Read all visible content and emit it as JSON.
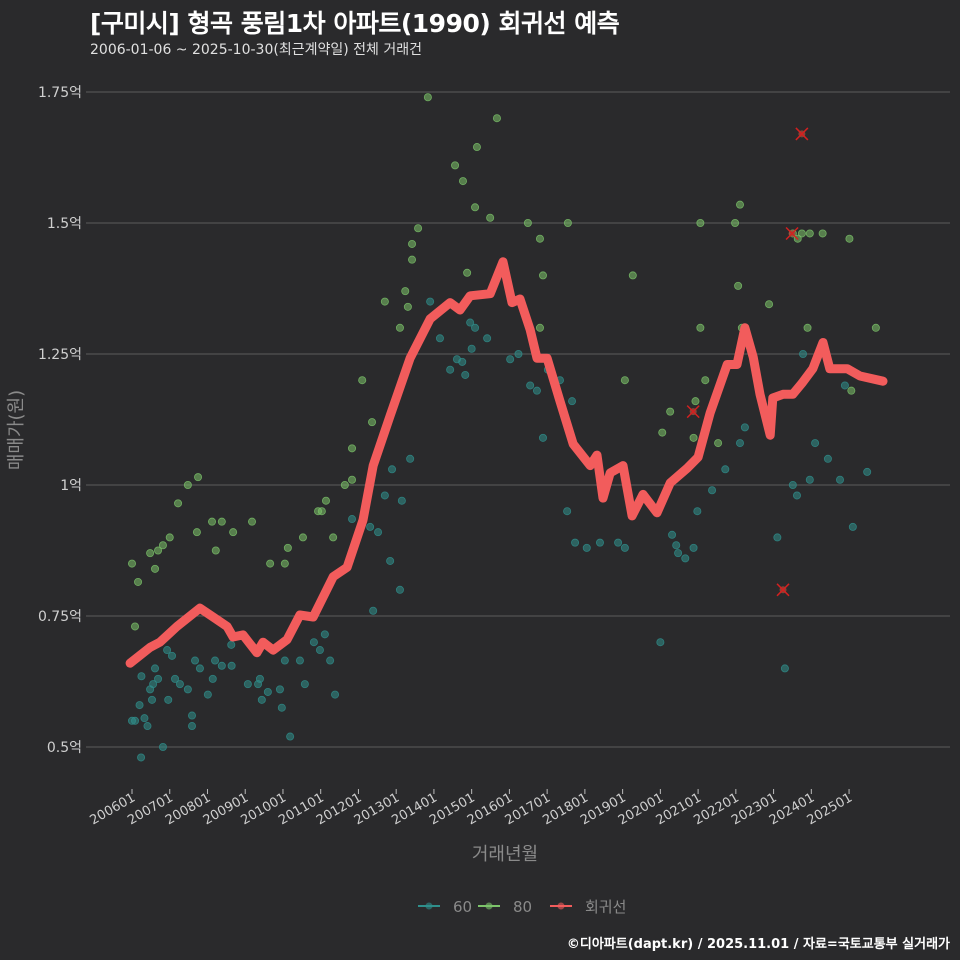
{
  "header": {
    "title": "[구미시] 형곡 풍림1차 아파트(1990) 회귀선 예측",
    "subtitle": "2006-01-06 ~ 2025-10-30(최근계약일) 전체 거래건"
  },
  "footer": "©디아파트(dapt.kr) / 2025.11.01 / 자료=국토교통부 실거래가",
  "colors": {
    "background": "#2a2a2c",
    "grid": "#5c5c5c",
    "series60": "#2f8f8c",
    "series80": "#7cc36a",
    "regression": "#f25c5c",
    "outlier": "#d42020"
  },
  "chart_data": {
    "type": "scatter",
    "title": "[구미시] 형곡 풍림1차 아파트(1990) 회귀선 예측",
    "xlabel": "거래년월",
    "ylabel": "매매가(원)",
    "xlim": [
      2005.5,
      2026.3
    ],
    "ylim": [
      0.43,
      1.8
    ],
    "yticks": [
      {
        "value": 0.5,
        "label": "0.5억"
      },
      {
        "value": 0.75,
        "label": "0.75억"
      },
      {
        "value": 1.0,
        "label": "1억"
      },
      {
        "value": 1.25,
        "label": "1.25억"
      },
      {
        "value": 1.5,
        "label": "1.5억"
      },
      {
        "value": 1.75,
        "label": "1.75억"
      }
    ],
    "xticks": [
      {
        "value": 2006,
        "label": "200601"
      },
      {
        "value": 2007,
        "label": "200701"
      },
      {
        "value": 2008,
        "label": "200801"
      },
      {
        "value": 2009,
        "label": "200901"
      },
      {
        "value": 2010,
        "label": "201001"
      },
      {
        "value": 2011,
        "label": "201101"
      },
      {
        "value": 2012,
        "label": "201201"
      },
      {
        "value": 2013,
        "label": "201301"
      },
      {
        "value": 2014,
        "label": "201401"
      },
      {
        "value": 2015,
        "label": "201501"
      },
      {
        "value": 2016,
        "label": "201601"
      },
      {
        "value": 2017,
        "label": "201701"
      },
      {
        "value": 2018,
        "label": "201801"
      },
      {
        "value": 2019,
        "label": "201901"
      },
      {
        "value": 2020,
        "label": "202001"
      },
      {
        "value": 2021,
        "label": "202101"
      },
      {
        "value": 2022,
        "label": "202201"
      },
      {
        "value": 2023,
        "label": "202301"
      },
      {
        "value": 2024,
        "label": "202401"
      },
      {
        "value": 2025,
        "label": "202501"
      }
    ],
    "legend": {
      "position": "bottom",
      "items": [
        {
          "name": "60",
          "key": "series60"
        },
        {
          "name": "80",
          "key": "series80"
        },
        {
          "name": "회귀선",
          "key": "regression"
        }
      ]
    },
    "series": [
      {
        "name": "60",
        "points": [
          [
            2006.0,
            0.55
          ],
          [
            2006.08,
            0.55
          ],
          [
            2006.2,
            0.58
          ],
          [
            2006.25,
            0.635
          ],
          [
            2006.33,
            0.555
          ],
          [
            2006.41,
            0.54
          ],
          [
            2006.48,
            0.61
          ],
          [
            2006.53,
            0.59
          ],
          [
            2006.56,
            0.62
          ],
          [
            2006.61,
            0.65
          ],
          [
            2006.69,
            0.63
          ],
          [
            2006.82,
            0.5
          ],
          [
            2006.93,
            0.685
          ],
          [
            2006.96,
            0.59
          ],
          [
            2006.24,
            0.48
          ],
          [
            2007.06,
            0.674
          ],
          [
            2007.14,
            0.63
          ],
          [
            2007.27,
            0.62
          ],
          [
            2007.48,
            0.61
          ],
          [
            2007.59,
            0.54
          ],
          [
            2007.59,
            0.56
          ],
          [
            2007.67,
            0.665
          ],
          [
            2007.8,
            0.65
          ],
          [
            2008.01,
            0.6
          ],
          [
            2008.14,
            0.63
          ],
          [
            2008.2,
            0.665
          ],
          [
            2008.38,
            0.655
          ],
          [
            2008.63,
            0.695
          ],
          [
            2008.64,
            0.655
          ],
          [
            2009.07,
            0.62
          ],
          [
            2009.34,
            0.62
          ],
          [
            2009.44,
            0.59
          ],
          [
            2009.39,
            0.63
          ],
          [
            2009.6,
            0.605
          ],
          [
            2009.92,
            0.61
          ],
          [
            2009.97,
            0.575
          ],
          [
            2010.05,
            0.665
          ],
          [
            2010.19,
            0.52
          ],
          [
            2010.45,
            0.665
          ],
          [
            2010.58,
            0.62
          ],
          [
            2010.82,
            0.7
          ],
          [
            2010.98,
            0.685
          ],
          [
            2011.11,
            0.715
          ],
          [
            2011.25,
            0.665
          ],
          [
            2011.38,
            0.6
          ],
          [
            2011.77,
            0.855
          ],
          [
            2011.83,
            0.935
          ],
          [
            2012.31,
            0.92
          ],
          [
            2012.39,
            0.76
          ],
          [
            2012.52,
            0.91
          ],
          [
            2012.7,
            0.98
          ],
          [
            2012.84,
            0.855
          ],
          [
            2012.89,
            1.03
          ],
          [
            2013.1,
            0.8
          ],
          [
            2013.15,
            0.97
          ],
          [
            2013.37,
            1.05
          ],
          [
            2013.63,
            1.28
          ],
          [
            2013.9,
            1.35
          ],
          [
            2014.16,
            1.28
          ],
          [
            2014.43,
            1.22
          ],
          [
            2014.61,
            1.24
          ],
          [
            2014.75,
            1.235
          ],
          [
            2014.83,
            1.21
          ],
          [
            2014.96,
            1.31
          ],
          [
            2015.0,
            1.26
          ],
          [
            2015.09,
            1.3
          ],
          [
            2015.41,
            1.28
          ],
          [
            2016.02,
            1.24
          ],
          [
            2016.24,
            1.25
          ],
          [
            2016.55,
            1.19
          ],
          [
            2016.73,
            1.18
          ],
          [
            2016.89,
            1.09
          ],
          [
            2017.02,
            1.22
          ],
          [
            2017.34,
            1.2
          ],
          [
            2017.66,
            1.16
          ],
          [
            2017.53,
            0.95
          ],
          [
            2017.74,
            0.89
          ],
          [
            2018.05,
            0.88
          ],
          [
            2018.4,
            0.89
          ],
          [
            2018.88,
            0.89
          ],
          [
            2019.06,
            0.88
          ],
          [
            2020.0,
            0.7
          ],
          [
            2020.31,
            0.905
          ],
          [
            2020.42,
            0.885
          ],
          [
            2020.47,
            0.87
          ],
          [
            2020.66,
            0.86
          ],
          [
            2020.88,
            0.88
          ],
          [
            2020.98,
            0.95
          ],
          [
            2021.37,
            0.99
          ],
          [
            2021.72,
            1.03
          ],
          [
            2022.11,
            1.08
          ],
          [
            2022.24,
            1.11
          ],
          [
            2023.1,
            0.9
          ],
          [
            2023.3,
            0.65
          ],
          [
            2023.51,
            1.0
          ],
          [
            2023.62,
            0.98
          ],
          [
            2023.96,
            1.01
          ],
          [
            2024.1,
            1.08
          ],
          [
            2024.44,
            1.05
          ],
          [
            2024.76,
            1.01
          ],
          [
            2025.1,
            0.92
          ],
          [
            2025.48,
            1.025
          ],
          [
            2023.78,
            1.25
          ],
          [
            2024.89,
            1.19
          ]
        ]
      },
      {
        "name": "80",
        "points": [
          [
            2006.0,
            0.85
          ],
          [
            2006.08,
            0.73
          ],
          [
            2006.16,
            0.815
          ],
          [
            2006.48,
            0.87
          ],
          [
            2006.61,
            0.84
          ],
          [
            2006.69,
            0.875
          ],
          [
            2006.82,
            0.885
          ],
          [
            2007.0,
            0.9
          ],
          [
            2007.22,
            0.965
          ],
          [
            2007.48,
            1.0
          ],
          [
            2007.75,
            1.015
          ],
          [
            2007.72,
            0.91
          ],
          [
            2008.12,
            0.93
          ],
          [
            2008.22,
            0.875
          ],
          [
            2008.38,
            0.93
          ],
          [
            2008.68,
            0.91
          ],
          [
            2009.18,
            0.93
          ],
          [
            2009.66,
            0.85
          ],
          [
            2010.05,
            0.85
          ],
          [
            2010.13,
            0.88
          ],
          [
            2010.53,
            0.9
          ],
          [
            2010.93,
            0.95
          ],
          [
            2011.03,
            0.95
          ],
          [
            2011.14,
            0.97
          ],
          [
            2011.33,
            0.9
          ],
          [
            2011.64,
            1.0
          ],
          [
            2011.83,
            1.01
          ],
          [
            2011.83,
            1.07
          ],
          [
            2012.1,
            1.2
          ],
          [
            2012.36,
            1.12
          ],
          [
            2012.7,
            1.35
          ],
          [
            2013.1,
            1.3
          ],
          [
            2013.24,
            1.37
          ],
          [
            2013.31,
            1.34
          ],
          [
            2013.58,
            1.49
          ],
          [
            2013.42,
            1.46
          ],
          [
            2013.42,
            1.43
          ],
          [
            2013.84,
            1.74
          ],
          [
            2014.56,
            1.61
          ],
          [
            2014.77,
            1.58
          ],
          [
            2014.88,
            1.405
          ],
          [
            2015.14,
            1.645
          ],
          [
            2015.09,
            1.53
          ],
          [
            2015.49,
            1.51
          ],
          [
            2015.67,
            1.7
          ],
          [
            2016.49,
            1.5
          ],
          [
            2016.81,
            1.47
          ],
          [
            2016.89,
            1.4
          ],
          [
            2016.81,
            1.3
          ],
          [
            2017.55,
            1.5
          ],
          [
            2019.06,
            1.2
          ],
          [
            2019.27,
            1.4
          ],
          [
            2020.05,
            1.1
          ],
          [
            2020.26,
            1.14
          ],
          [
            2020.93,
            1.16
          ],
          [
            2021.06,
            1.5
          ],
          [
            2021.06,
            1.3
          ],
          [
            2021.19,
            1.2
          ],
          [
            2021.53,
            1.08
          ],
          [
            2021.98,
            1.5
          ],
          [
            2022.11,
            1.535
          ],
          [
            2022.06,
            1.38
          ],
          [
            2022.16,
            1.3
          ],
          [
            2022.88,
            1.345
          ],
          [
            2023.51,
            1.48
          ],
          [
            2023.64,
            1.47
          ],
          [
            2023.75,
            1.48
          ],
          [
            2023.96,
            1.48
          ],
          [
            2023.9,
            1.3
          ],
          [
            2024.3,
            1.48
          ],
          [
            2025.01,
            1.47
          ],
          [
            2025.06,
            1.18
          ],
          [
            2025.71,
            1.3
          ],
          [
            2020.88,
            1.09
          ]
        ]
      },
      {
        "name": "회귀선",
        "type": "line",
        "points": [
          [
            2005.95,
            0.66
          ],
          [
            2006.48,
            0.69
          ],
          [
            2006.74,
            0.7
          ],
          [
            2007.19,
            0.73
          ],
          [
            2007.8,
            0.765
          ],
          [
            2008.15,
            0.748
          ],
          [
            2008.52,
            0.73
          ],
          [
            2008.68,
            0.71
          ],
          [
            2008.94,
            0.714
          ],
          [
            2009.31,
            0.68
          ],
          [
            2009.47,
            0.7
          ],
          [
            2009.74,
            0.685
          ],
          [
            2010.11,
            0.705
          ],
          [
            2010.45,
            0.752
          ],
          [
            2010.8,
            0.748
          ],
          [
            2011.33,
            0.825
          ],
          [
            2011.7,
            0.843
          ],
          [
            2012.12,
            0.933
          ],
          [
            2012.39,
            1.037
          ],
          [
            2012.84,
            1.132
          ],
          [
            2013.37,
            1.242
          ],
          [
            2013.9,
            1.317
          ],
          [
            2014.43,
            1.348
          ],
          [
            2014.69,
            1.334
          ],
          [
            2014.96,
            1.361
          ],
          [
            2015.49,
            1.365
          ],
          [
            2015.83,
            1.426
          ],
          [
            2016.07,
            1.348
          ],
          [
            2016.28,
            1.355
          ],
          [
            2016.55,
            1.296
          ],
          [
            2016.73,
            1.242
          ],
          [
            2017.0,
            1.242
          ],
          [
            2017.34,
            1.16
          ],
          [
            2017.69,
            1.078
          ],
          [
            2018.14,
            1.037
          ],
          [
            2018.32,
            1.057
          ],
          [
            2018.48,
            0.975
          ],
          [
            2018.67,
            1.023
          ],
          [
            2019.01,
            1.037
          ],
          [
            2019.25,
            0.941
          ],
          [
            2019.54,
            0.982
          ],
          [
            2019.91,
            0.947
          ],
          [
            2020.26,
            1.004
          ],
          [
            2020.71,
            1.032
          ],
          [
            2021.0,
            1.053
          ],
          [
            2021.32,
            1.138
          ],
          [
            2021.77,
            1.23
          ],
          [
            2022.03,
            1.23
          ],
          [
            2022.24,
            1.3
          ],
          [
            2022.46,
            1.244
          ],
          [
            2022.64,
            1.173
          ],
          [
            2022.91,
            1.095
          ],
          [
            2022.98,
            1.166
          ],
          [
            2023.25,
            1.173
          ],
          [
            2023.51,
            1.173
          ],
          [
            2023.75,
            1.194
          ],
          [
            2024.04,
            1.222
          ],
          [
            2024.31,
            1.272
          ],
          [
            2024.49,
            1.222
          ],
          [
            2024.95,
            1.222
          ],
          [
            2025.29,
            1.208
          ],
          [
            2025.9,
            1.198
          ]
        ]
      },
      {
        "name": "outliers",
        "type": "x-marker",
        "points": [
          [
            2020.87,
            1.14
          ],
          [
            2023.25,
            0.8
          ],
          [
            2023.49,
            1.48
          ],
          [
            2023.75,
            1.67
          ]
        ]
      }
    ]
  }
}
